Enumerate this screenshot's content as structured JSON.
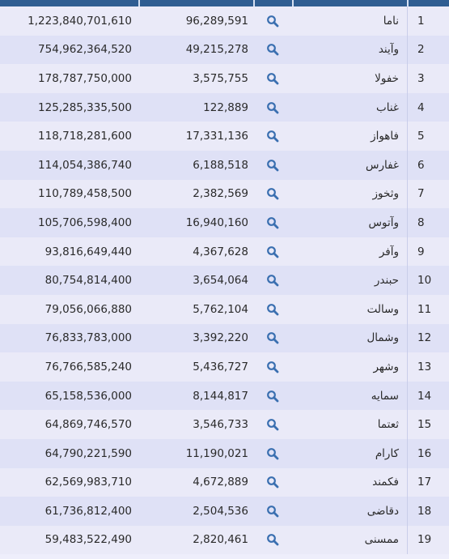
{
  "rows": [
    {
      "rank": "1",
      "name": "ناما",
      "count": "96,289,591",
      "value": "1,223,840,701,610"
    },
    {
      "rank": "2",
      "name": "وآیند",
      "count": "49,215,278",
      "value": "754,962,364,520"
    },
    {
      "rank": "3",
      "name": "خفولا",
      "count": "3,575,755",
      "value": "178,787,750,000"
    },
    {
      "rank": "4",
      "name": "غناب",
      "count": "122,889",
      "value": "125,285,335,500"
    },
    {
      "rank": "5",
      "name": "فاهواز",
      "count": "17,331,136",
      "value": "118,718,281,600"
    },
    {
      "rank": "6",
      "name": "غفارس",
      "count": "6,188,518",
      "value": "114,054,386,740"
    },
    {
      "rank": "7",
      "name": "وثخوز",
      "count": "2,382,569",
      "value": "110,789,458,500"
    },
    {
      "rank": "8",
      "name": "وآتوس",
      "count": "16,940,160",
      "value": "105,706,598,400"
    },
    {
      "rank": "9",
      "name": "وآفر",
      "count": "4,367,628",
      "value": "93,816,649,440"
    },
    {
      "rank": "10",
      "name": "حبندر",
      "count": "3,654,064",
      "value": "80,754,814,400"
    },
    {
      "rank": "11",
      "name": "وسالت",
      "count": "5,762,104",
      "value": "79,056,066,880"
    },
    {
      "rank": "12",
      "name": "وشمال",
      "count": "3,392,220",
      "value": "76,833,783,000"
    },
    {
      "rank": "13",
      "name": "وشهر",
      "count": "5,436,727",
      "value": "76,766,585,240"
    },
    {
      "rank": "14",
      "name": "سمایه",
      "count": "8,144,817",
      "value": "65,158,536,000"
    },
    {
      "rank": "15",
      "name": "ثعتما",
      "count": "3,546,733",
      "value": "64,869,746,570"
    },
    {
      "rank": "16",
      "name": "کارام",
      "count": "11,190,021",
      "value": "64,790,221,590"
    },
    {
      "rank": "17",
      "name": "فکمند",
      "count": "4,672,889",
      "value": "62,569,983,710"
    },
    {
      "rank": "18",
      "name": "دقاضی",
      "count": "2,504,536",
      "value": "61,736,812,400"
    },
    {
      "rank": "19",
      "name": "ممسنی",
      "count": "2,820,461",
      "value": "59,483,522,490"
    }
  ],
  "icon": "search-icon",
  "colors": {
    "header": "#2f5d92",
    "row_odd": "#eaeaf8",
    "row_even": "#dfe1f6",
    "icon": "#3a6fb0"
  }
}
